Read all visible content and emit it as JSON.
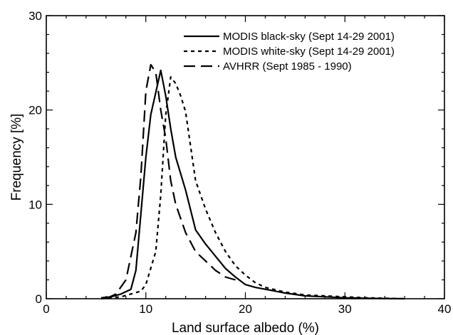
{
  "chart_data": {
    "type": "line",
    "xlabel": "Land surface albedo (%)",
    "ylabel": "Frequency [%]",
    "xlim": [
      0,
      40
    ],
    "ylim": [
      0,
      30
    ],
    "xticks": [
      0,
      10,
      20,
      30,
      40
    ],
    "yticks": [
      0,
      10,
      20,
      30
    ],
    "xtick_labels": [
      "0",
      "10",
      "20",
      "30",
      "40"
    ],
    "ytick_labels": [
      "0",
      "10",
      "20",
      "30"
    ],
    "legend_position": "top-right",
    "grid": false,
    "series": [
      {
        "name": "MODIS black-sky (Sept 14-29 2001)",
        "style": "solid",
        "x": [
          5.5,
          6.5,
          7.5,
          8.5,
          9,
          10,
          10.5,
          11.5,
          12,
          12.5,
          13,
          14,
          15,
          16,
          17,
          18,
          19,
          20,
          21,
          22,
          24,
          26,
          28,
          30,
          32,
          34,
          36
        ],
        "y": [
          0.1,
          0.2,
          0.5,
          1.0,
          3.0,
          15.0,
          19.5,
          24.2,
          21.5,
          18.0,
          15.0,
          11.5,
          7.3,
          5.8,
          4.5,
          3.2,
          2.3,
          1.5,
          1.2,
          1.0,
          0.6,
          0.3,
          0.2,
          0.1,
          0.05,
          0.02,
          0.0
        ]
      },
      {
        "name": "MODIS white-sky (Sept 14-29 2001)",
        "style": "dotted",
        "x": [
          5.5,
          6.5,
          7.5,
          8.5,
          9.5,
          10.0,
          11.0,
          11.5,
          12.0,
          12.5,
          13.0,
          13.5,
          14.0,
          15.0,
          16.0,
          17.0,
          18.0,
          19.0,
          20.0,
          21.0,
          22.0,
          24.0,
          26.0,
          28.0,
          30.0,
          32.0,
          34.0,
          36.0
        ],
        "y": [
          0.0,
          0.1,
          0.2,
          0.5,
          0.8,
          1.5,
          5.0,
          11.0,
          19.5,
          23.5,
          22.8,
          21.5,
          19.8,
          12.5,
          9.5,
          7.0,
          5.0,
          3.5,
          2.5,
          1.7,
          1.2,
          0.7,
          0.4,
          0.3,
          0.2,
          0.1,
          0.05,
          0.0
        ]
      },
      {
        "name": "AVHRR (Sept 1985 - 1990)",
        "style": "dashed",
        "x": [
          6.0,
          7.0,
          8.0,
          9.0,
          9.5,
          10.0,
          10.5,
          11.0,
          11.5,
          12.0,
          12.5,
          13.0,
          14.0,
          15.0,
          16.0,
          17.0,
          18.0,
          19.0
        ],
        "y": [
          0.0,
          0.5,
          2.0,
          7.0,
          13.0,
          22.0,
          24.8,
          24.0,
          20.0,
          17.0,
          12.5,
          10.0,
          7.0,
          5.0,
          4.0,
          3.0,
          2.3,
          2.0
        ]
      }
    ]
  }
}
